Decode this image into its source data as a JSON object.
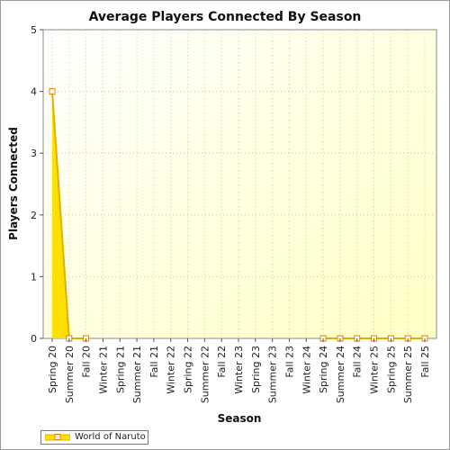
{
  "chart_data": {
    "type": "area",
    "title": "Average Players Connected By Season",
    "xlabel": "Season",
    "ylabel": "Players Connected",
    "ylim": [
      0,
      5
    ],
    "yticks": [
      "0",
      "1",
      "2",
      "3",
      "4",
      "5"
    ],
    "categories": [
      "Spring 20",
      "Summer 20",
      "Fall 20",
      "Winter 21",
      "Spring 21",
      "Summer 21",
      "Fall 21",
      "Winter 22",
      "Spring 22",
      "Summer 22",
      "Fall 22",
      "Winter 23",
      "Spring 23",
      "Summer 23",
      "Fall 23",
      "Winter 24",
      "Spring 24",
      "Summer 24",
      "Fall 24",
      "Winter 25",
      "Spring 25",
      "Summer 25",
      "Fall 25"
    ],
    "series": [
      {
        "name": "World of Naruto",
        "values": [
          4,
          0,
          0,
          null,
          null,
          null,
          null,
          null,
          null,
          null,
          null,
          null,
          null,
          null,
          null,
          null,
          0,
          0,
          0,
          0,
          0,
          0,
          0
        ]
      }
    ],
    "grid": true,
    "legend": "bottom-left",
    "colors": {
      "fill": "#ffe000",
      "line": "#e0b000",
      "marker": "#ffffff",
      "marker_edge": "#e08000",
      "plot_bg_top": "#ffffe0",
      "plot_bg_bottom": "#ffffc8"
    }
  }
}
